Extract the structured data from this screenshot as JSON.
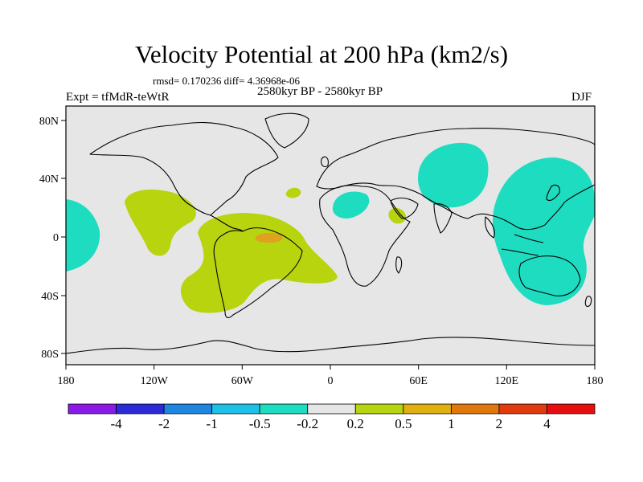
{
  "title": "Velocity Potential at 200 hPa (km2/s)",
  "subtitle_stats": "rmsd= 0.170236 diff= 4.36968e-06",
  "period": "2580kyr BP - 2580kyr BP",
  "experiment": "Expt = tfMdR-teWtR",
  "season": "DJF",
  "x_ticks": [
    "180",
    "120W",
    "60W",
    "0",
    "60E",
    "120E",
    "180"
  ],
  "y_ticks": [
    "80N",
    "40N",
    "0",
    "40S",
    "80S"
  ],
  "colorbar": {
    "colors": [
      "#8a1ae6",
      "#2a2ad6",
      "#1e86e0",
      "#1ec0e6",
      "#1edcc0",
      "#e6e6e6",
      "#b8d40e",
      "#e0b010",
      "#e0780e",
      "#e03a0e",
      "#e60e0e"
    ],
    "labels": [
      "-4",
      "-2",
      "-1",
      "-0.5",
      "-0.2",
      "0.2",
      "0.5",
      "1",
      "2",
      "4"
    ]
  },
  "colors": {
    "background": "#e6e6e6",
    "negative": "#1edcc0",
    "positive": "#b8d40e",
    "strong_positive": "#e0a020"
  }
}
